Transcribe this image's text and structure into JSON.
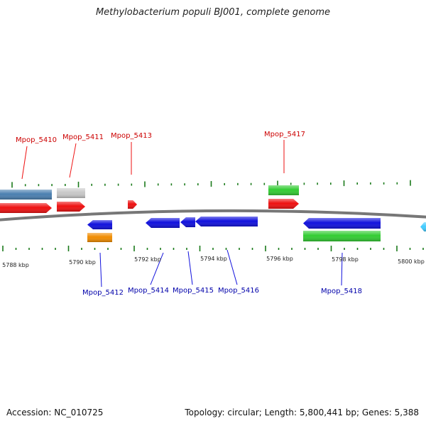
{
  "title": "Methylobacterium populi BJ001, complete genome",
  "footer": {
    "accession": "Accession: NC_010725",
    "summary": "Topology: circular; Length: 5,800,441 bp; Genes: 5,388"
  },
  "colors": {
    "backbone": "#777777",
    "tick": "#1a7a1a",
    "red": "#ee1111",
    "blue": "#1111dd",
    "green": "#33cc33",
    "steel": "#4a7fb0",
    "gray": "#c8c8c8",
    "orange": "#f08c00",
    "cyan": "#44ccff",
    "label_red": "#cc0000",
    "label_blue": "#0000aa"
  },
  "scale_labels": [
    "5788 kbp",
    "5790 kbp",
    "5792 kbp",
    "5794 kbp",
    "5796 kbp",
    "5798 kbp",
    "5800 kbp"
  ],
  "gene_labels": [
    {
      "text": "Mpop_5410",
      "color": "red"
    },
    {
      "text": "Mpop_5411",
      "color": "red"
    },
    {
      "text": "Mpop_5413",
      "color": "red"
    },
    {
      "text": "Mpop_5417",
      "color": "red"
    },
    {
      "text": "Mpop_5412",
      "color": "blue"
    },
    {
      "text": "Mpop_5414",
      "color": "blue"
    },
    {
      "text": "Mpop_5415",
      "color": "blue"
    },
    {
      "text": "Mpop_5416",
      "color": "blue"
    },
    {
      "text": "Mpop_5418",
      "color": "blue"
    }
  ]
}
